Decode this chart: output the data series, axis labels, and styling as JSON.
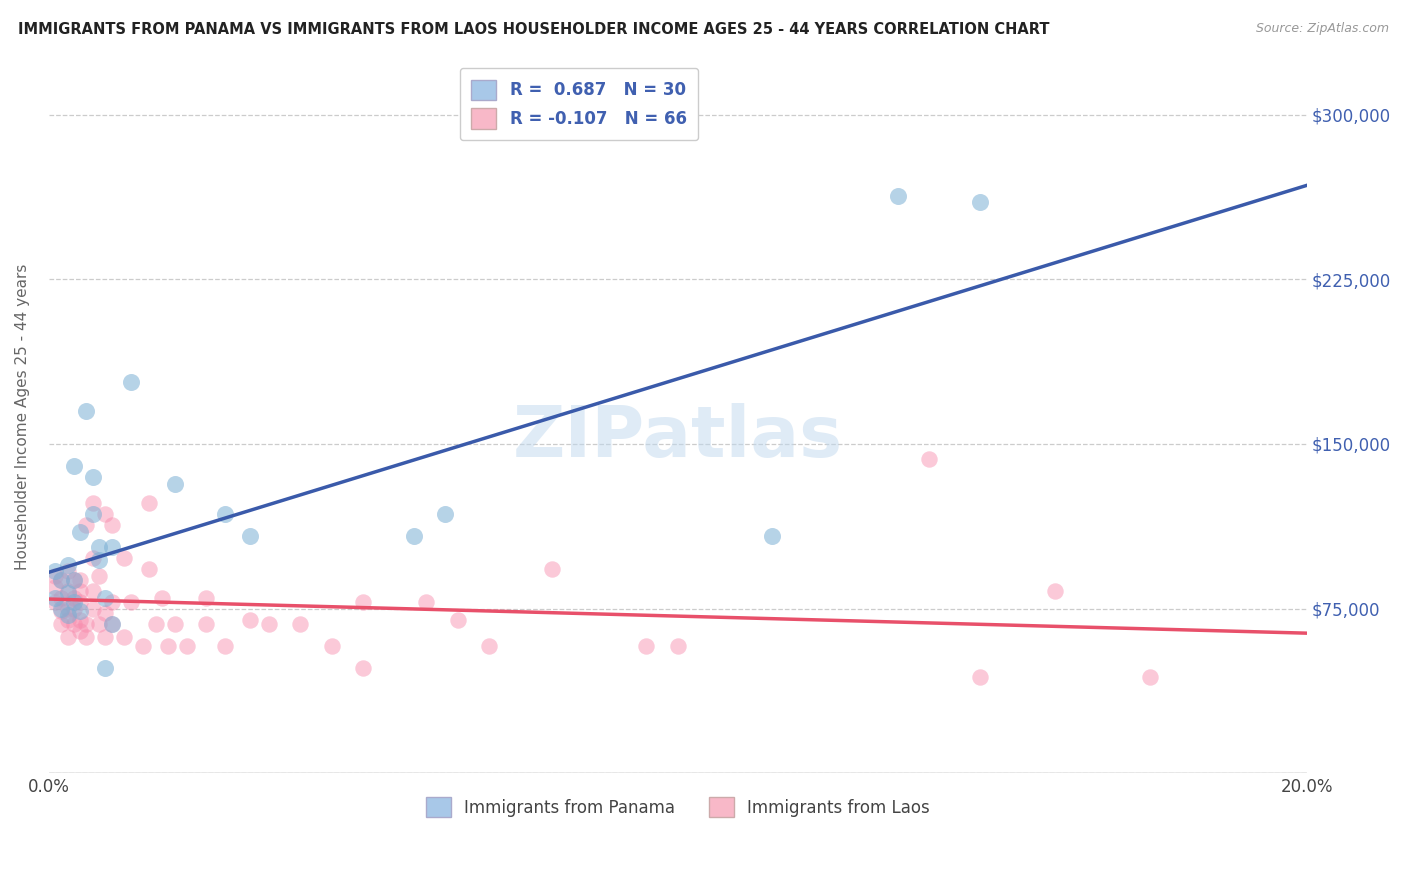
{
  "title": "IMMIGRANTS FROM PANAMA VS IMMIGRANTS FROM LAOS HOUSEHOLDER INCOME AGES 25 - 44 YEARS CORRELATION CHART",
  "source": "Source: ZipAtlas.com",
  "ylabel": "Householder Income Ages 25 - 44 years",
  "xlim": [
    0.0,
    0.2
  ],
  "ylim": [
    0,
    325000
  ],
  "yticks": [
    0,
    75000,
    150000,
    225000,
    300000
  ],
  "ytick_labels": [
    "",
    "$75,000",
    "$150,000",
    "$225,000",
    "$300,000"
  ],
  "xticks": [
    0.0,
    0.05,
    0.1,
    0.15,
    0.2
  ],
  "xtick_labels": [
    "0.0%",
    "",
    "",
    "",
    "20.0%"
  ],
  "watermark": "ZIPatlas",
  "panama_color": "#7bafd4",
  "laos_color": "#f788aa",
  "panama_line_color": "#3a5aaa",
  "laos_line_color": "#e8506a",
  "background_color": "#ffffff",
  "panama_scatter_x": [
    0.001,
    0.001,
    0.002,
    0.002,
    0.003,
    0.003,
    0.003,
    0.004,
    0.004,
    0.004,
    0.005,
    0.005,
    0.006,
    0.007,
    0.007,
    0.008,
    0.008,
    0.009,
    0.009,
    0.01,
    0.01,
    0.013,
    0.02,
    0.028,
    0.032,
    0.058,
    0.063,
    0.115,
    0.135,
    0.148
  ],
  "panama_scatter_y": [
    80000,
    92000,
    75000,
    88000,
    72000,
    82000,
    95000,
    78000,
    88000,
    140000,
    74000,
    110000,
    165000,
    118000,
    135000,
    97000,
    103000,
    80000,
    48000,
    103000,
    68000,
    178000,
    132000,
    118000,
    108000,
    108000,
    118000,
    108000,
    263000,
    260000
  ],
  "laos_scatter_x": [
    0.001,
    0.001,
    0.001,
    0.002,
    0.002,
    0.002,
    0.002,
    0.003,
    0.003,
    0.003,
    0.003,
    0.003,
    0.004,
    0.004,
    0.004,
    0.004,
    0.005,
    0.005,
    0.005,
    0.005,
    0.005,
    0.006,
    0.006,
    0.006,
    0.007,
    0.007,
    0.007,
    0.007,
    0.008,
    0.008,
    0.009,
    0.009,
    0.009,
    0.01,
    0.01,
    0.01,
    0.012,
    0.012,
    0.013,
    0.015,
    0.016,
    0.016,
    0.017,
    0.018,
    0.019,
    0.02,
    0.022,
    0.025,
    0.025,
    0.028,
    0.032,
    0.035,
    0.04,
    0.045,
    0.05,
    0.05,
    0.06,
    0.065,
    0.07,
    0.08,
    0.095,
    0.1,
    0.14,
    0.148,
    0.16,
    0.175
  ],
  "laos_scatter_y": [
    78000,
    85000,
    90000,
    68000,
    74000,
    80000,
    88000,
    62000,
    70000,
    75000,
    83000,
    92000,
    68000,
    75000,
    80000,
    88000,
    65000,
    70000,
    78000,
    83000,
    88000,
    62000,
    68000,
    113000,
    75000,
    83000,
    98000,
    123000,
    68000,
    90000,
    62000,
    73000,
    118000,
    68000,
    78000,
    113000,
    62000,
    98000,
    78000,
    58000,
    93000,
    123000,
    68000,
    80000,
    58000,
    68000,
    58000,
    80000,
    68000,
    58000,
    70000,
    68000,
    68000,
    58000,
    78000,
    48000,
    78000,
    70000,
    58000,
    93000,
    58000,
    58000,
    143000,
    44000,
    83000,
    44000
  ],
  "legend_R_blue": "R =  0.687",
  "legend_N_blue": "N = 30",
  "legend_R_pink": "R = -0.107",
  "legend_N_pink": "N = 66",
  "legend_blue_color": "#a8c8e8",
  "legend_pink_color": "#f8b8c8",
  "legend_text_color": "#4060b0"
}
